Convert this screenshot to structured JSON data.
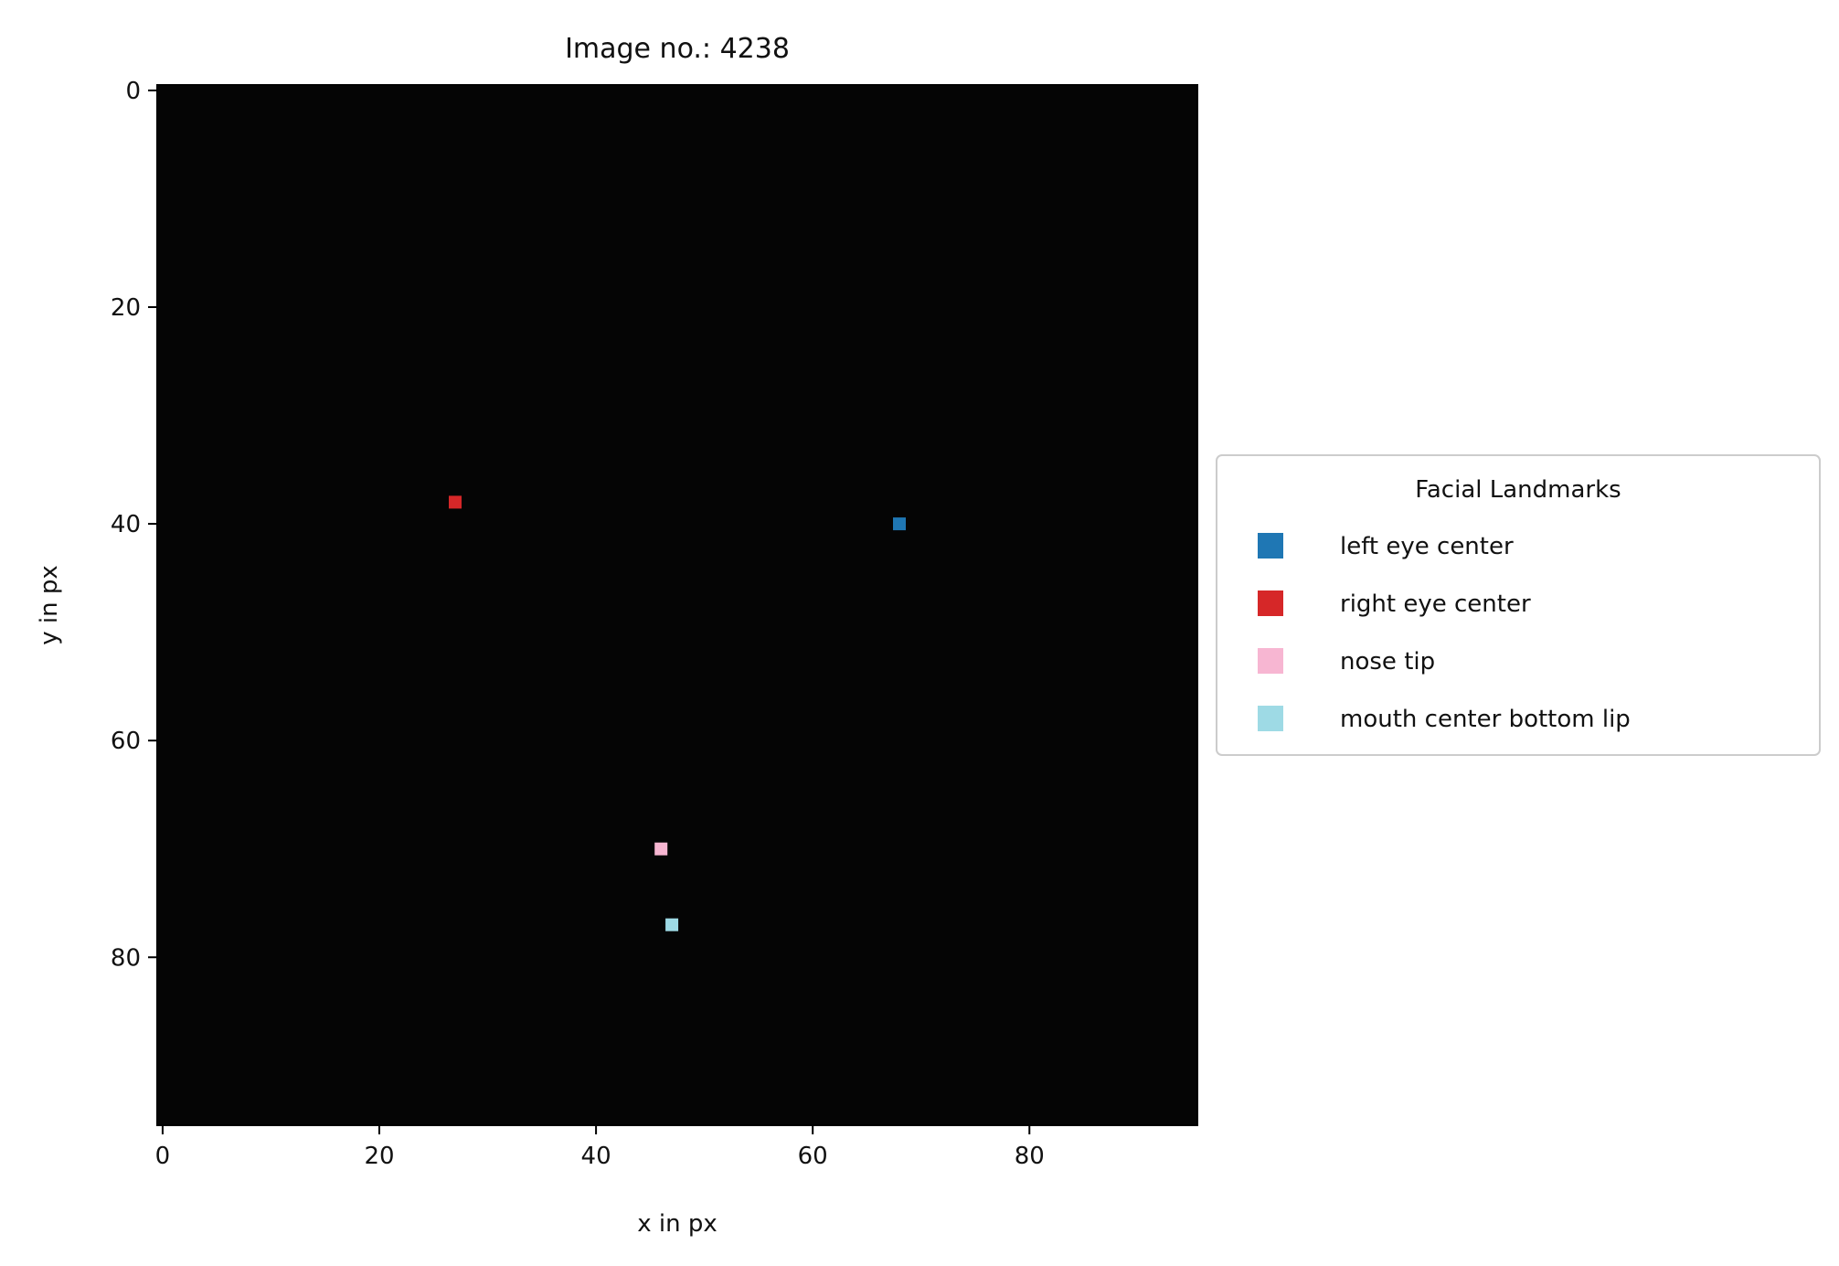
{
  "chart_data": {
    "type": "scatter",
    "title": "Image no.: 4238",
    "xlabel": "x in px",
    "ylabel": "y in px",
    "xlim": [
      -0.5,
      95.5
    ],
    "ylim": [
      95.5,
      -0.5
    ],
    "x_ticks": [
      0,
      20,
      40,
      60,
      80
    ],
    "y_ticks": [
      0,
      20,
      40,
      60,
      80
    ],
    "background": "grayscale 96x96 face photograph",
    "legend": {
      "title": "Facial Landmarks",
      "placement": "center-right outside"
    },
    "series": [
      {
        "name": "left eye center",
        "color": "#1f77b4",
        "x": 68,
        "y": 40
      },
      {
        "name": "right eye center",
        "color": "#d62728",
        "x": 27,
        "y": 38
      },
      {
        "name": "nose tip",
        "color": "#f7b6d2",
        "x": 46,
        "y": 70
      },
      {
        "name": "mouth center bottom lip",
        "color": "#9edae5",
        "x": 47,
        "y": 77
      }
    ]
  }
}
